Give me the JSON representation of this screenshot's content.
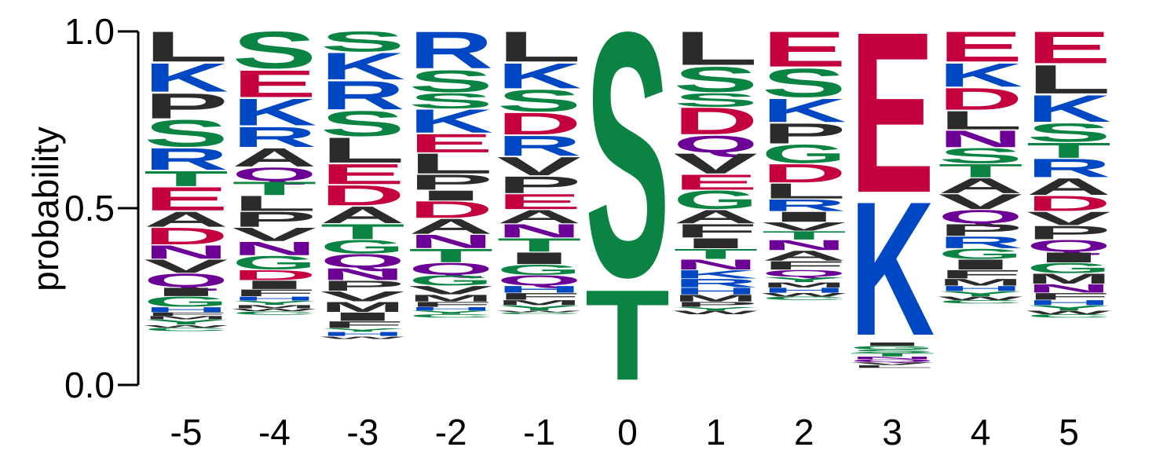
{
  "colors": {
    "hydrophobic": "#2b2b2b",
    "polar": "#0b8443",
    "basic": "#0047c4",
    "acidic": "#c4003f",
    "amide": "#6c0096"
  },
  "chart_data": {
    "type": "sequence_logo",
    "title": "",
    "xlabel": "",
    "ylabel": "probability",
    "ylim": [
      0,
      1
    ],
    "yticks": [
      "0.0",
      "0.5",
      "1.0"
    ],
    "grid": false,
    "legend": "none",
    "positions": [
      {
        "label": "-5",
        "letters": [
          [
            "L",
            0.09
          ],
          [
            "K",
            0.085
          ],
          [
            "P",
            0.075
          ],
          [
            "S",
            0.08
          ],
          [
            "R",
            0.065
          ],
          [
            "T",
            0.045
          ],
          [
            "E",
            0.07
          ],
          [
            "A",
            0.045
          ],
          [
            "D",
            0.05
          ],
          [
            "N",
            0.04
          ],
          [
            "V",
            0.04
          ],
          [
            "Q",
            0.04
          ],
          [
            "I",
            0.025
          ],
          [
            "G",
            0.03
          ],
          [
            "H",
            0.015
          ],
          [
            "F",
            0.01
          ],
          [
            "M",
            0.01
          ],
          [
            "Y",
            0.015
          ],
          [
            "W",
            0.008
          ],
          [
            "C",
            0.01
          ]
        ]
      },
      {
        "label": "-4",
        "letters": [
          [
            "S",
            0.11
          ],
          [
            "E",
            0.08
          ],
          [
            "K",
            0.08
          ],
          [
            "R",
            0.06
          ],
          [
            "A",
            0.055
          ],
          [
            "Q",
            0.04
          ],
          [
            "T",
            0.04
          ],
          [
            "L",
            0.045
          ],
          [
            "P",
            0.045
          ],
          [
            "V",
            0.04
          ],
          [
            "N",
            0.04
          ],
          [
            "G",
            0.04
          ],
          [
            "D",
            0.03
          ],
          [
            "I",
            0.025
          ],
          [
            "F",
            0.02
          ],
          [
            "H",
            0.012
          ],
          [
            "Y",
            0.012
          ],
          [
            "M",
            0.01
          ],
          [
            "W",
            0.008
          ],
          [
            "C",
            0.01
          ]
        ]
      },
      {
        "label": "-3",
        "letters": [
          [
            "S",
            0.06
          ],
          [
            "K",
            0.08
          ],
          [
            "R",
            0.085
          ],
          [
            "S",
            0.075
          ],
          [
            "L",
            0.075
          ],
          [
            "E",
            0.06
          ],
          [
            "D",
            0.06
          ],
          [
            "A",
            0.05
          ],
          [
            "T",
            0.045
          ],
          [
            "G",
            0.04
          ],
          [
            "Q",
            0.04
          ],
          [
            "N",
            0.035
          ],
          [
            "P",
            0.03
          ],
          [
            "V",
            0.03
          ],
          [
            "M",
            0.03
          ],
          [
            "I",
            0.025
          ],
          [
            "F",
            0.02
          ],
          [
            "Y",
            0.01
          ],
          [
            "H",
            0.012
          ],
          [
            "W",
            0.008
          ]
        ]
      },
      {
        "label": "-2",
        "letters": [
          [
            "R",
            0.11
          ],
          [
            "S",
            0.065
          ],
          [
            "S",
            0.045
          ],
          [
            "K",
            0.07
          ],
          [
            "E",
            0.055
          ],
          [
            "L",
            0.06
          ],
          [
            "P",
            0.045
          ],
          [
            "I",
            0.03
          ],
          [
            "D",
            0.05
          ],
          [
            "A",
            0.045
          ],
          [
            "N",
            0.04
          ],
          [
            "T",
            0.04
          ],
          [
            "Q",
            0.035
          ],
          [
            "G",
            0.03
          ],
          [
            "V",
            0.025
          ],
          [
            "M",
            0.02
          ],
          [
            "F",
            0.015
          ],
          [
            "H",
            0.01
          ],
          [
            "Y",
            0.01
          ],
          [
            "C",
            0.01
          ]
        ]
      },
      {
        "label": "-1",
        "letters": [
          [
            "L",
            0.09
          ],
          [
            "K",
            0.075
          ],
          [
            "S",
            0.065
          ],
          [
            "D",
            0.065
          ],
          [
            "R",
            0.06
          ],
          [
            "V",
            0.055
          ],
          [
            "P",
            0.05
          ],
          [
            "E",
            0.045
          ],
          [
            "A",
            0.04
          ],
          [
            "N",
            0.04
          ],
          [
            "T",
            0.04
          ],
          [
            "I",
            0.035
          ],
          [
            "G",
            0.03
          ],
          [
            "Q",
            0.03
          ],
          [
            "H",
            0.02
          ],
          [
            "F",
            0.02
          ],
          [
            "M",
            0.015
          ],
          [
            "Y",
            0.015
          ],
          [
            "W",
            0.005
          ],
          [
            "C",
            0.005
          ]
        ]
      },
      {
        "label": "0",
        "letters": [
          [
            "S",
            0.73
          ],
          [
            "T",
            0.27
          ]
        ]
      },
      {
        "label": "1",
        "letters": [
          [
            "L",
            0.1
          ],
          [
            "S",
            0.075
          ],
          [
            "S",
            0.04
          ],
          [
            "D",
            0.08
          ],
          [
            "Q",
            0.05
          ],
          [
            "V",
            0.06
          ],
          [
            "E",
            0.045
          ],
          [
            "G",
            0.055
          ],
          [
            "A",
            0.04
          ],
          [
            "F",
            0.04
          ],
          [
            "I",
            0.03
          ],
          [
            "T",
            0.03
          ],
          [
            "N",
            0.03
          ],
          [
            "K",
            0.025
          ],
          [
            "R",
            0.025
          ],
          [
            "H",
            0.02
          ],
          [
            "M",
            0.02
          ],
          [
            "P",
            0.015
          ],
          [
            "Y",
            0.01
          ],
          [
            "W",
            0.01
          ]
        ]
      },
      {
        "label": "2",
        "letters": [
          [
            "E",
            0.105
          ],
          [
            "S",
            0.085
          ],
          [
            "K",
            0.07
          ],
          [
            "P",
            0.06
          ],
          [
            "G",
            0.055
          ],
          [
            "D",
            0.055
          ],
          [
            "L",
            0.045
          ],
          [
            "R",
            0.035
          ],
          [
            "I",
            0.03
          ],
          [
            "V",
            0.025
          ],
          [
            "T",
            0.025
          ],
          [
            "N",
            0.03
          ],
          [
            "A",
            0.03
          ],
          [
            "F",
            0.025
          ],
          [
            "Q",
            0.02
          ],
          [
            "Y",
            0.015
          ],
          [
            "M",
            0.015
          ],
          [
            "H",
            0.015
          ],
          [
            "W",
            0.01
          ],
          [
            "C",
            0.01
          ]
        ]
      },
      {
        "label": "3",
        "letters": [
          [
            "E",
            0.48
          ],
          [
            "K",
            0.4
          ],
          [
            "I",
            0.01
          ],
          [
            "G",
            0.01
          ],
          [
            "S",
            0.01
          ],
          [
            "T",
            0.01
          ],
          [
            "N",
            0.008
          ],
          [
            "Q",
            0.008
          ],
          [
            "V",
            0.008
          ],
          [
            "L",
            0.008
          ]
        ]
      },
      {
        "label": "4",
        "letters": [
          [
            "E",
            0.09
          ],
          [
            "K",
            0.07
          ],
          [
            "D",
            0.065
          ],
          [
            "L",
            0.055
          ],
          [
            "N",
            0.05
          ],
          [
            "S",
            0.045
          ],
          [
            "T",
            0.04
          ],
          [
            "A",
            0.045
          ],
          [
            "V",
            0.045
          ],
          [
            "Q",
            0.04
          ],
          [
            "P",
            0.035
          ],
          [
            "R",
            0.035
          ],
          [
            "G",
            0.03
          ],
          [
            "I",
            0.03
          ],
          [
            "F",
            0.025
          ],
          [
            "M",
            0.02
          ],
          [
            "H",
            0.015
          ],
          [
            "Y",
            0.015
          ],
          [
            "W",
            0.01
          ],
          [
            "C",
            0.01
          ]
        ]
      },
      {
        "label": "5",
        "letters": [
          [
            "E",
            0.095
          ],
          [
            "L",
            0.085
          ],
          [
            "K",
            0.08
          ],
          [
            "S",
            0.055
          ],
          [
            "T",
            0.045
          ],
          [
            "R",
            0.055
          ],
          [
            "A",
            0.05
          ],
          [
            "D",
            0.045
          ],
          [
            "V",
            0.04
          ],
          [
            "P",
            0.04
          ],
          [
            "Q",
            0.035
          ],
          [
            "I",
            0.03
          ],
          [
            "G",
            0.03
          ],
          [
            "M",
            0.03
          ],
          [
            "N",
            0.025
          ],
          [
            "F",
            0.02
          ],
          [
            "H",
            0.015
          ],
          [
            "Y",
            0.015
          ],
          [
            "W",
            0.01
          ],
          [
            "C",
            0.01
          ]
        ]
      }
    ]
  }
}
